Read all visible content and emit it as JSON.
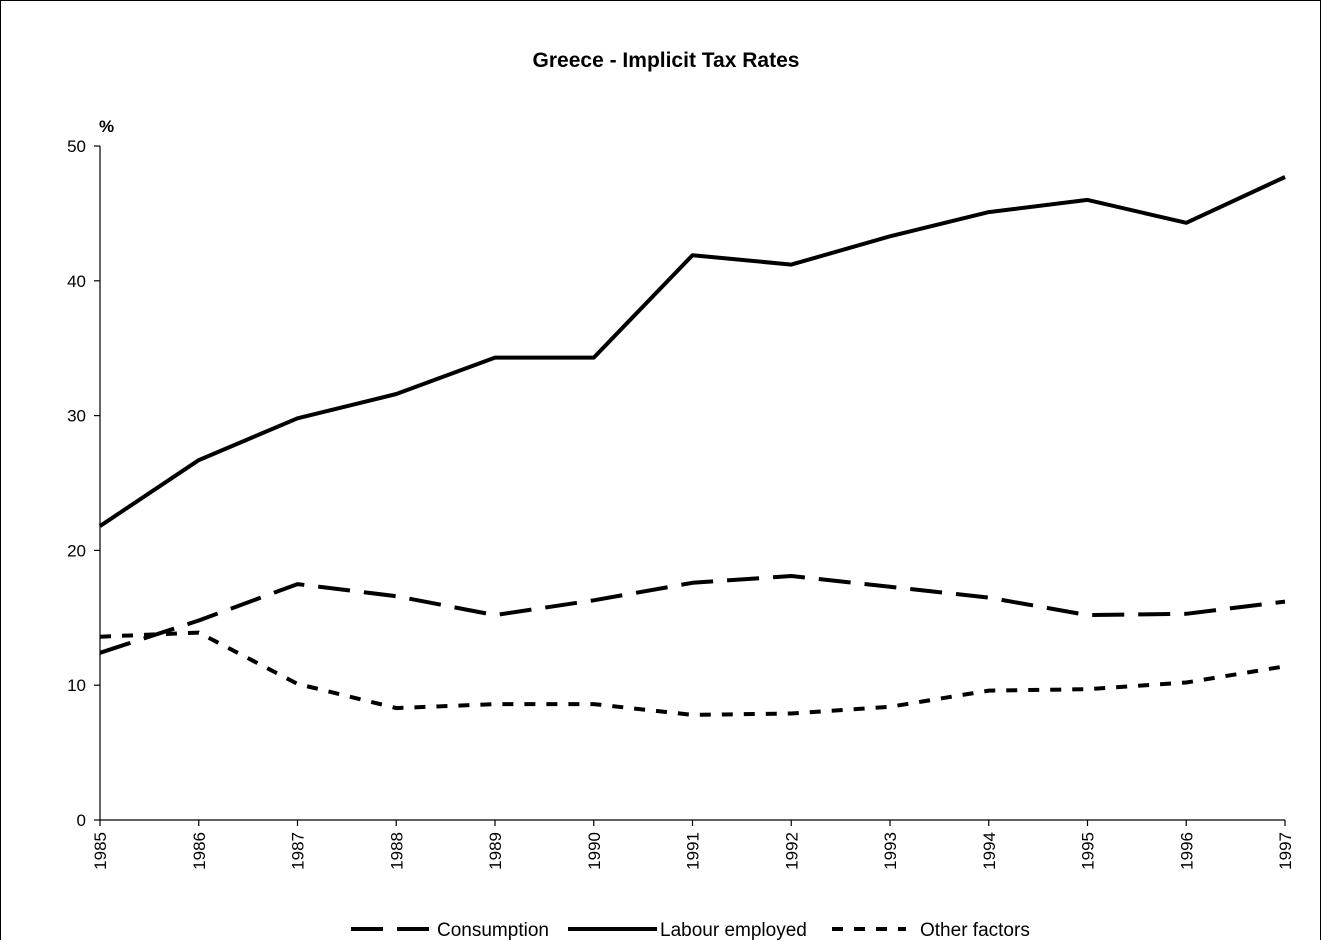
{
  "chart_data": {
    "type": "line",
    "title": "Greece - Implicit Tax Rates",
    "ylabel": "%",
    "xlabel": "",
    "x": [
      "1985",
      "1986",
      "1987",
      "1988",
      "1989",
      "1990",
      "1991",
      "1992",
      "1993",
      "1994",
      "1995",
      "1996",
      "1997"
    ],
    "ylim": [
      0,
      50
    ],
    "yticks": [
      0,
      10,
      20,
      30,
      40,
      50
    ],
    "grid": false,
    "legend_position": "bottom",
    "series": [
      {
        "name": "Consumption",
        "style": "long-dash",
        "color": "#000000",
        "values": [
          12.4,
          14.8,
          17.5,
          16.6,
          15.2,
          16.3,
          17.6,
          18.1,
          17.3,
          16.5,
          15.2,
          15.3,
          16.2
        ]
      },
      {
        "name": "Labour employed",
        "style": "solid",
        "color": "#000000",
        "values": [
          21.8,
          26.7,
          29.8,
          31.6,
          34.3,
          34.3,
          41.9,
          41.2,
          43.3,
          45.1,
          46.0,
          44.3,
          47.7
        ]
      },
      {
        "name": "Other factors",
        "style": "short-dash",
        "color": "#000000",
        "values": [
          13.6,
          13.9,
          10.1,
          8.3,
          8.6,
          8.6,
          7.8,
          7.9,
          8.4,
          9.6,
          9.7,
          10.2,
          11.4
        ]
      }
    ]
  }
}
